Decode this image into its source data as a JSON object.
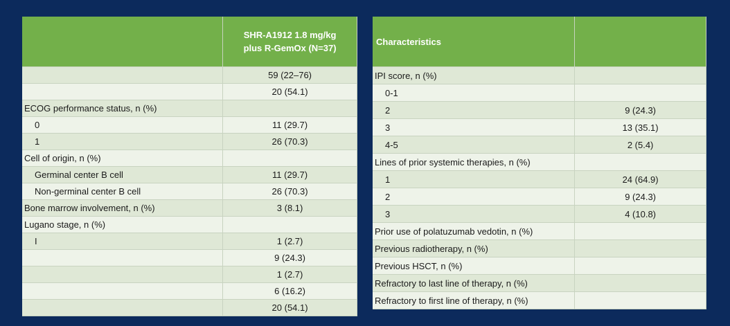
{
  "left_table": {
    "header": {
      "col1": "",
      "col2": "SHR-A1912 1.8 mg/kg plus R-GemOx (N=37)"
    },
    "rows": [
      {
        "label": "",
        "value": "59 (22–76)",
        "indent": false
      },
      {
        "label": "",
        "value": "20 (54.1)",
        "indent": false
      },
      {
        "label": "ECOG performance status, n (%)",
        "value": "",
        "indent": false
      },
      {
        "label": "0",
        "value": "11 (29.7)",
        "indent": true
      },
      {
        "label": "1",
        "value": "26 (70.3)",
        "indent": true
      },
      {
        "label": "Cell of origin, n (%)",
        "value": "",
        "indent": false
      },
      {
        "label": "Germinal center B cell",
        "value": "11 (29.7)",
        "indent": true
      },
      {
        "label": "Non-germinal center B cell",
        "value": "26 (70.3)",
        "indent": true
      },
      {
        "label": "Bone marrow involvement, n (%)",
        "value": "3 (8.1)",
        "indent": false
      },
      {
        "label": "Lugano stage, n (%)",
        "value": "",
        "indent": false
      },
      {
        "label": "I",
        "value": "1 (2.7)",
        "indent": true
      },
      {
        "label": "",
        "value": "9 (24.3)",
        "indent": true
      },
      {
        "label": "",
        "value": "1 (2.7)",
        "indent": true
      },
      {
        "label": "",
        "value": "6 (16.2)",
        "indent": true
      },
      {
        "label": "",
        "value": "20 (54.1)",
        "indent": true
      }
    ]
  },
  "right_table": {
    "header": {
      "col1": "Characteristics",
      "col2": ""
    },
    "rows": [
      {
        "label": "IPI score, n (%)",
        "value": "",
        "indent": false
      },
      {
        "label": "0-1",
        "value": "",
        "indent": true
      },
      {
        "label": "2",
        "value": "9 (24.3)",
        "indent": true
      },
      {
        "label": "3",
        "value": "13 (35.1)",
        "indent": true
      },
      {
        "label": "4-5",
        "value": "2 (5.4)",
        "indent": true
      },
      {
        "label": "Lines of prior systemic therapies, n (%)",
        "value": "",
        "indent": false
      },
      {
        "label": "1",
        "value": "24 (64.9)",
        "indent": true
      },
      {
        "label": "2",
        "value": "9 (24.3)",
        "indent": true
      },
      {
        "label": "3",
        "value": "4 (10.8)",
        "indent": true
      },
      {
        "label": "Prior use of polatuzumab vedotin, n (%)",
        "value": "",
        "indent": false
      },
      {
        "label": "Previous radiotherapy, n (%)",
        "value": "",
        "indent": false
      },
      {
        "label": "Previous HSCT, n (%)",
        "value": "",
        "indent": false
      },
      {
        "label": "Refractory to last line of therapy, n (%)",
        "value": "",
        "indent": false
      },
      {
        "label": "Refractory to first line of therapy, n (%)",
        "value": "",
        "indent": false
      }
    ]
  },
  "colors": {
    "background": "#0c2a5c",
    "header_green": "#73b04a",
    "row_odd": "#dfe8d6",
    "row_even": "#eef3e9"
  }
}
